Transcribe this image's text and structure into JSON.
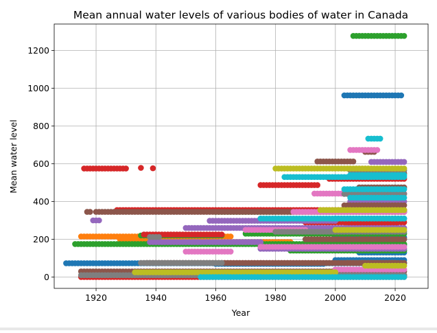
{
  "chart_data": {
    "type": "scatter",
    "title": "Mean annual water levels of various bodies of water in Canada",
    "xlabel": "Year",
    "ylabel": "Mean water level",
    "xlim": [
      1906,
      2031
    ],
    "ylim": [
      -60,
      1340
    ],
    "xticks": [
      1920,
      1940,
      1960,
      1980,
      2000,
      2020
    ],
    "yticks": [
      0,
      200,
      400,
      600,
      800,
      1000,
      1200
    ],
    "grid": true,
    "series": [
      {
        "name": "blue",
        "color": "#1f77b4",
        "runs": [
          [
            1910,
            2023,
            73
          ],
          [
            2003,
            2022,
            962
          ],
          [
            1996,
            2023,
            170
          ],
          [
            2000,
            2023,
            310
          ],
          [
            2000,
            2023,
            210
          ],
          [
            2000,
            2023,
            90
          ],
          [
            1960,
            1996,
            70
          ],
          [
            2008,
            2023,
            130
          ],
          [
            2003,
            2023,
            10
          ]
        ]
      },
      {
        "name": "orange",
        "color": "#ff7f0e",
        "runs": [
          [
            1915,
            1965,
            215
          ],
          [
            1966,
            1985,
            185
          ],
          [
            2004,
            2020,
            75
          ],
          [
            2004,
            2020,
            280
          ],
          [
            2002,
            2022,
            178
          ],
          [
            1928,
            1960,
            200
          ]
        ]
      },
      {
        "name": "green",
        "color": "#2ca02c",
        "runs": [
          [
            1913,
            2023,
            175
          ],
          [
            2006,
            2023,
            1277
          ],
          [
            1960,
            2023,
            345
          ],
          [
            1980,
            2023,
            10
          ],
          [
            1935,
            1962,
            220
          ],
          [
            1970,
            2023,
            230
          ],
          [
            1985,
            2023,
            140
          ]
        ]
      },
      {
        "name": "red",
        "color": "#d62728",
        "runs": [
          [
            1916,
            1930,
            575
          ],
          [
            1935,
            1935,
            578
          ],
          [
            1939,
            1939,
            576
          ],
          [
            1927,
            2023,
            355
          ],
          [
            1975,
            1994,
            487
          ],
          [
            1915,
            2023,
            0
          ],
          [
            1998,
            2023,
            520
          ],
          [
            1936,
            1962,
            225
          ],
          [
            2005,
            2020,
            280
          ],
          [
            1990,
            2023,
            290
          ]
        ]
      },
      {
        "name": "purple",
        "color": "#9467bd",
        "runs": [
          [
            1919,
            1921,
            300
          ],
          [
            1950,
            2023,
            260
          ],
          [
            1958,
            2000,
            298
          ],
          [
            1938,
            1975,
            185
          ],
          [
            1975,
            2023,
            150
          ],
          [
            2012,
            2023,
            610
          ],
          [
            2005,
            2023,
            400
          ]
        ]
      },
      {
        "name": "brown",
        "color": "#8c564b",
        "runs": [
          [
            1917,
            1918,
            345
          ],
          [
            1920,
            2023,
            345
          ],
          [
            1915,
            2023,
            30
          ],
          [
            1994,
            2006,
            612
          ],
          [
            2006,
            2023,
            550
          ],
          [
            2008,
            2023,
            475
          ],
          [
            1937,
            2023,
            75
          ],
          [
            2003,
            2023,
            380
          ],
          [
            2010,
            2013,
            663
          ],
          [
            1990,
            2023,
            200
          ]
        ]
      },
      {
        "name": "pink",
        "color": "#e377c2",
        "runs": [
          [
            1950,
            1965,
            135
          ],
          [
            1970,
            1990,
            250
          ],
          [
            1993,
            2023,
            442
          ],
          [
            1986,
            2023,
            345
          ],
          [
            2005,
            2014,
            673
          ],
          [
            1975,
            2023,
            160
          ],
          [
            2000,
            2023,
            40
          ]
        ]
      },
      {
        "name": "gray",
        "color": "#7f7f7f",
        "runs": [
          [
            1935,
            1962,
            75
          ],
          [
            1938,
            1941,
            212
          ],
          [
            1915,
            2023,
            10
          ],
          [
            1980,
            2023,
            240
          ],
          [
            2005,
            2023,
            565
          ],
          [
            2003,
            2023,
            440
          ]
        ]
      },
      {
        "name": "olive",
        "color": "#bcbd22",
        "runs": [
          [
            1933,
            2000,
            25
          ],
          [
            1980,
            2023,
            575
          ],
          [
            1995,
            2023,
            355
          ],
          [
            2000,
            2023,
            250
          ],
          [
            2010,
            2023,
            60
          ]
        ]
      },
      {
        "name": "cyan",
        "color": "#17becf",
        "runs": [
          [
            2011,
            2015,
            733
          ],
          [
            2003,
            2023,
            465
          ],
          [
            1983,
            2023,
            530
          ],
          [
            1975,
            2023,
            310
          ],
          [
            2005,
            2023,
            420
          ],
          [
            1955,
            2023,
            0
          ],
          [
            2005,
            2023,
            540
          ]
        ]
      }
    ]
  }
}
